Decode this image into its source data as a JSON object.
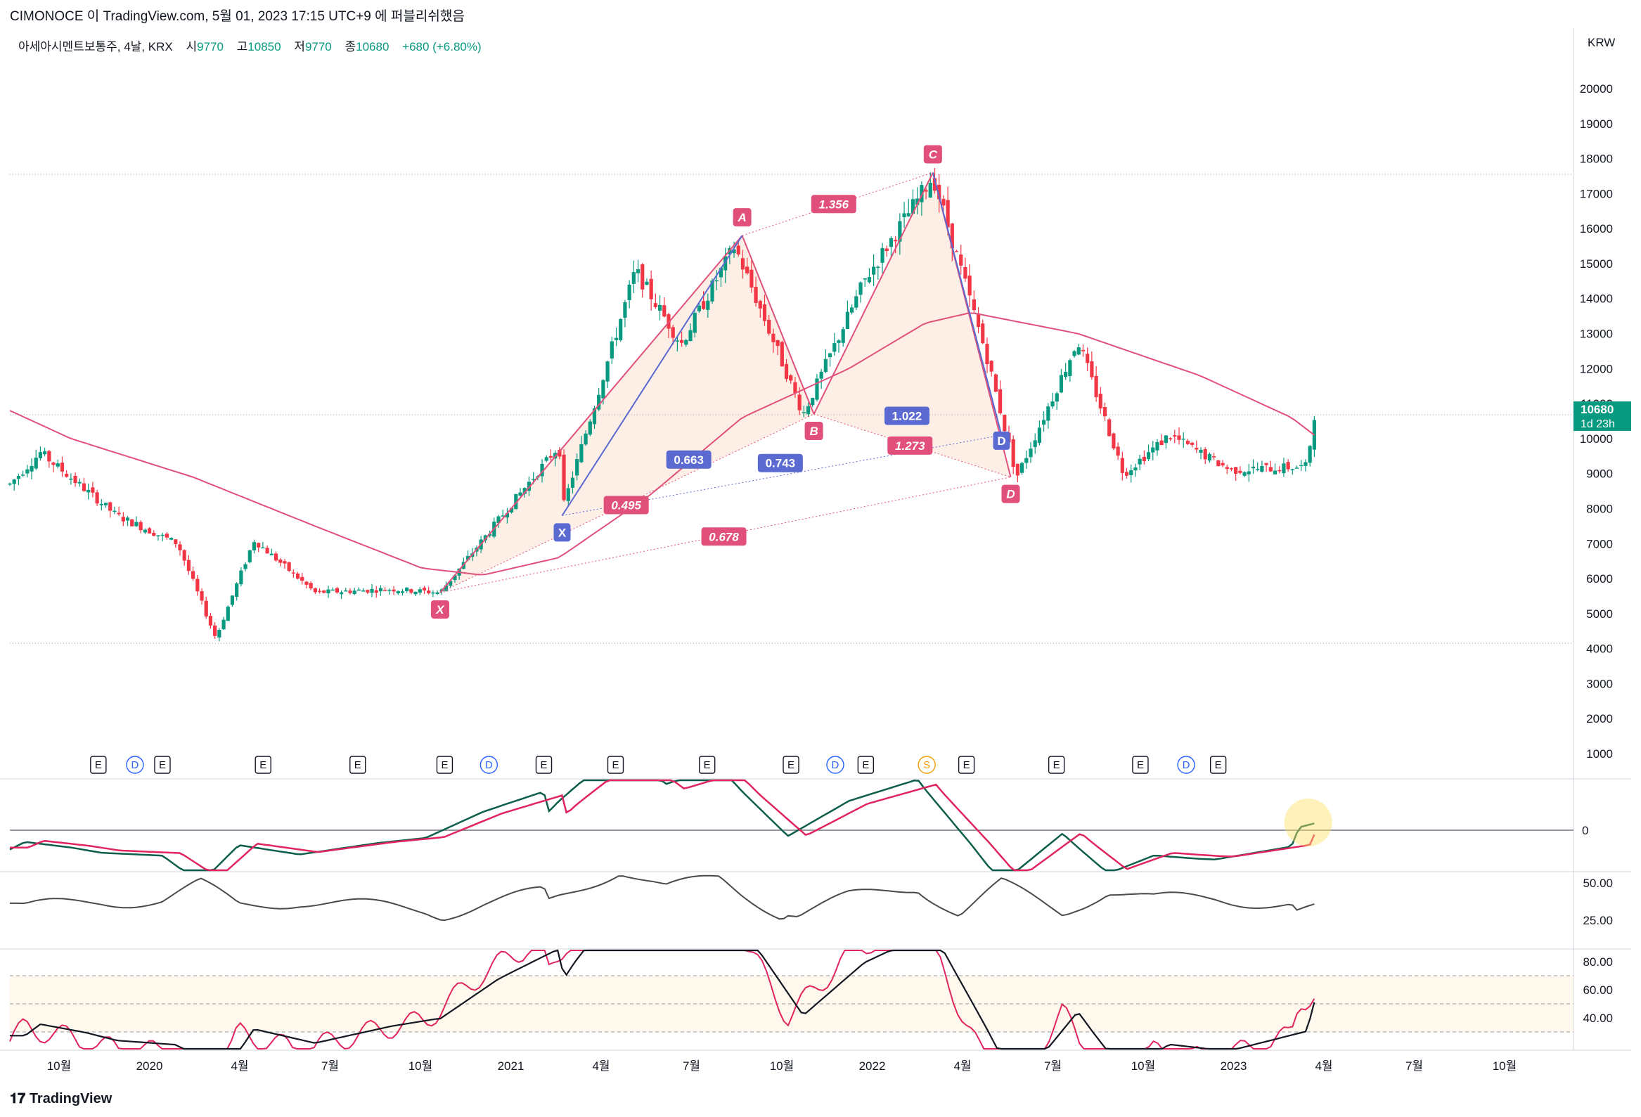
{
  "header": {
    "text": "CIMONOCE 이 TradingView.com, 5월 01, 2023 17:15 UTC+9 에 퍼블리쉬했음"
  },
  "legend": {
    "symbol": "아세아시멘트보통주, 4날, KRX",
    "open_label": "시",
    "open": "9770",
    "high_label": "고",
    "high": "10850",
    "low_label": "저",
    "low": "9770",
    "close_label": "종",
    "close": "10680",
    "change": "+680 (+6.80%)"
  },
  "currency": "KRW",
  "last_price_tag": {
    "price": "10680",
    "countdown": "1d 23h"
  },
  "footer": {
    "brand": "TradingView"
  },
  "colors": {
    "up": "#089981",
    "down": "#f23645",
    "ma": "#e0507a",
    "pattern": "#e0507a",
    "pattern_blue": "#5b6ad0",
    "macd": "#0d5e4b",
    "signal": "#e0245e",
    "rsi": "#e0245e",
    "rsi_ma": "#131722"
  },
  "chart_data": {
    "type": "candlestick",
    "price_axis": {
      "ylim": [
        800,
        21000
      ],
      "ticks": [
        "1000",
        "2000",
        "3000",
        "4000",
        "5000",
        "6000",
        "7000",
        "8000",
        "9000",
        "10000",
        "11000",
        "12000",
        "13000",
        "14000",
        "15000",
        "16000",
        "17000",
        "18000",
        "19000",
        "20000"
      ]
    },
    "time_axis": [
      "10월",
      "2020",
      "4월",
      "7월",
      "10월",
      "2021",
      "4월",
      "7월",
      "10월",
      "2022",
      "4월",
      "7월",
      "10월",
      "2023",
      "4월",
      "7월",
      "10월"
    ],
    "price_key_points": [
      {
        "t": 0.0,
        "p": 8700
      },
      {
        "t": 0.02,
        "p": 9600
      },
      {
        "t": 0.07,
        "p": 7800
      },
      {
        "t": 0.11,
        "p": 7000
      },
      {
        "t": 0.135,
        "p": 4300
      },
      {
        "t": 0.16,
        "p": 7100
      },
      {
        "t": 0.2,
        "p": 5600
      },
      {
        "t": 0.25,
        "p": 5700
      },
      {
        "t": 0.282,
        "p": 5600
      },
      {
        "t": 0.33,
        "p": 8200
      },
      {
        "t": 0.36,
        "p": 9800
      },
      {
        "t": 0.363,
        "p": 8100
      },
      {
        "t": 0.41,
        "p": 14800
      },
      {
        "t": 0.44,
        "p": 12700
      },
      {
        "t": 0.475,
        "p": 15500
      },
      {
        "t": 0.52,
        "p": 10700
      },
      {
        "t": 0.56,
        "p": 14500
      },
      {
        "t": 0.605,
        "p": 17500
      },
      {
        "t": 0.64,
        "p": 12400
      },
      {
        "t": 0.66,
        "p": 8900
      },
      {
        "t": 0.7,
        "p": 12800
      },
      {
        "t": 0.73,
        "p": 9000
      },
      {
        "t": 0.76,
        "p": 10100
      },
      {
        "t": 0.8,
        "p": 9100
      },
      {
        "t": 0.85,
        "p": 9200
      },
      {
        "t": 0.855,
        "p": 10680
      }
    ],
    "moving_average": [
      {
        "t": 0.0,
        "p": 10800
      },
      {
        "t": 0.04,
        "p": 10000
      },
      {
        "t": 0.12,
        "p": 8900
      },
      {
        "t": 0.2,
        "p": 7500
      },
      {
        "t": 0.27,
        "p": 6300
      },
      {
        "t": 0.31,
        "p": 6100
      },
      {
        "t": 0.36,
        "p": 6600
      },
      {
        "t": 0.42,
        "p": 8400
      },
      {
        "t": 0.48,
        "p": 10600
      },
      {
        "t": 0.55,
        "p": 12000
      },
      {
        "t": 0.6,
        "p": 13300
      },
      {
        "t": 0.63,
        "p": 13600
      },
      {
        "t": 0.7,
        "p": 13000
      },
      {
        "t": 0.78,
        "p": 11800
      },
      {
        "t": 0.84,
        "p": 10600
      },
      {
        "t": 0.855,
        "p": 10100
      }
    ],
    "pattern_points": [
      {
        "label": "X",
        "t": 0.282,
        "p": 5600
      },
      {
        "label": "A",
        "t": 0.48,
        "p": 15800
      },
      {
        "label": "B",
        "t": 0.527,
        "p": 10700
      },
      {
        "label": "C",
        "t": 0.605,
        "p": 17600
      },
      {
        "label": "D",
        "t": 0.656,
        "p": 8900
      }
    ],
    "pattern_ratios": [
      {
        "value": "1.356",
        "t": 0.54,
        "p": 16700
      },
      {
        "value": "0.495",
        "t": 0.404,
        "p": 8100
      },
      {
        "value": "0.678",
        "t": 0.468,
        "p": 7200
      },
      {
        "value": "1.273",
        "t": 0.59,
        "p": 9800
      }
    ],
    "inner_pattern_points": [
      {
        "label": "X",
        "t": 0.362,
        "p": 7800
      },
      {
        "label": "D",
        "t": 0.65,
        "p": 10100
      }
    ],
    "inner_pattern_ratios": [
      {
        "value": "0.663",
        "t": 0.445,
        "p": 9400
      },
      {
        "value": "1.022",
        "t": 0.588,
        "p": 10650
      },
      {
        "value": "0.743",
        "t": 0.505,
        "p": 9300
      }
    ],
    "horizontal_levels": [
      17550,
      10680,
      4150
    ],
    "events": [
      {
        "t": 0.058,
        "kind": "E"
      },
      {
        "t": 0.082,
        "kind": "D"
      },
      {
        "t": 0.1,
        "kind": "E"
      },
      {
        "t": 0.166,
        "kind": "E"
      },
      {
        "t": 0.228,
        "kind": "E"
      },
      {
        "t": 0.285,
        "kind": "E"
      },
      {
        "t": 0.314,
        "kind": "D"
      },
      {
        "t": 0.35,
        "kind": "E"
      },
      {
        "t": 0.397,
        "kind": "E"
      },
      {
        "t": 0.457,
        "kind": "E"
      },
      {
        "t": 0.512,
        "kind": "E"
      },
      {
        "t": 0.541,
        "kind": "D"
      },
      {
        "t": 0.561,
        "kind": "E"
      },
      {
        "t": 0.601,
        "kind": "S"
      },
      {
        "t": 0.627,
        "kind": "E"
      },
      {
        "t": 0.686,
        "kind": "E"
      },
      {
        "t": 0.741,
        "kind": "E"
      },
      {
        "t": 0.771,
        "kind": "D"
      },
      {
        "t": 0.792,
        "kind": "E"
      }
    ],
    "macd_panel": {
      "zero_label": "0"
    },
    "adx_panel": {
      "ticks": [
        "50.00",
        "25.00"
      ]
    },
    "rsi_panel": {
      "ticks": [
        "80.00",
        "60.00",
        "40.00"
      ],
      "upper_band": 70,
      "lower_band": 30
    }
  }
}
